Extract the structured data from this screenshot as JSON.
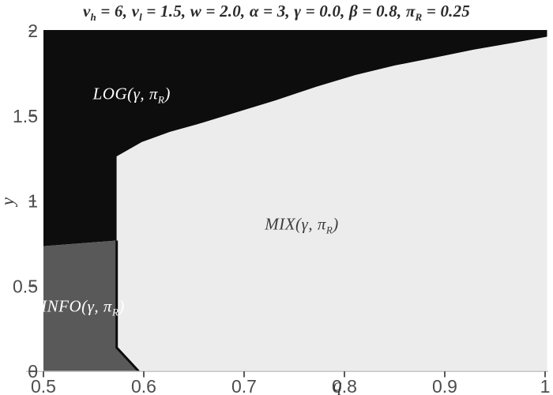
{
  "chart_data": {
    "type": "area",
    "subtype": "phase-region-map",
    "title": "v_{h} = 6, v_{l} = 1.5, w = 2.0, γ = 0.0, β = 0.8, π_{R} = 0.25",
    "title_full": "v_{h} = 6, v_{l} = 1.5, w = 2.0, α = 3, γ = 0.0, β = 0.8, π_{R} = 0.25",
    "xlabel": "q",
    "ylabel": "y",
    "xlim": [
      0.5,
      1.0
    ],
    "ylim": [
      0,
      2.0
    ],
    "grid": false,
    "legend": "none",
    "x_ticks": [
      0.5,
      0.6,
      0.7,
      0.8,
      0.9,
      1.0
    ],
    "x_tick_labels": [
      "0.5",
      "0.6",
      "0.7",
      "0.8",
      "0.9",
      "1"
    ],
    "y_ticks": [
      0,
      0.5,
      1.0,
      1.5,
      2.0
    ],
    "y_tick_labels": [
      "0",
      "0.5",
      "1",
      "1.5",
      "2"
    ],
    "regions": [
      {
        "name": "LOG",
        "label": "LOG(γ, π_{R})",
        "color": "#0d0d0d",
        "label_color": "#ffffff",
        "label_pos": [
          0.588,
          1.629
        ],
        "description": "top-left black region"
      },
      {
        "name": "MIX",
        "label": "MIX(γ, π_{R})",
        "color": "#ececec",
        "label_color": "#3d3d3d",
        "label_pos": [
          0.7575,
          0.863
        ],
        "description": "large light-gray region lower right"
      },
      {
        "name": "INFO",
        "label": "INFO(γ, π_{R})",
        "color": "#595959",
        "label_color": "#ffffff",
        "label_pos": [
          0.5394,
          0.3805
        ],
        "description": "small dark-gray region bottom left"
      }
    ],
    "boundaries": {
      "log_mix_curve": [
        [
          0.573,
          1.262
        ],
        [
          0.598,
          1.346
        ],
        [
          0.626,
          1.406
        ],
        [
          0.654,
          1.452
        ],
        [
          0.693,
          1.522
        ],
        [
          0.732,
          1.592
        ],
        [
          0.772,
          1.671
        ],
        [
          0.811,
          1.74
        ],
        [
          0.85,
          1.796
        ],
        [
          0.89,
          1.842
        ],
        [
          0.929,
          1.889
        ],
        [
          0.969,
          1.93
        ],
        [
          1.0,
          1.963
        ]
      ],
      "info_polygon": [
        [
          0.5,
          0.735
        ],
        [
          0.573,
          0.768
        ],
        [
          0.573,
          0.139
        ],
        [
          0.595,
          0.0
        ],
        [
          0.5,
          0.0
        ]
      ],
      "border_color": "#0d0d0d"
    },
    "axis_colors": {
      "axis_line": "#c9c9c9",
      "tick_mark": "#5a5a5a",
      "tick_label": "#4d4d4d"
    }
  }
}
